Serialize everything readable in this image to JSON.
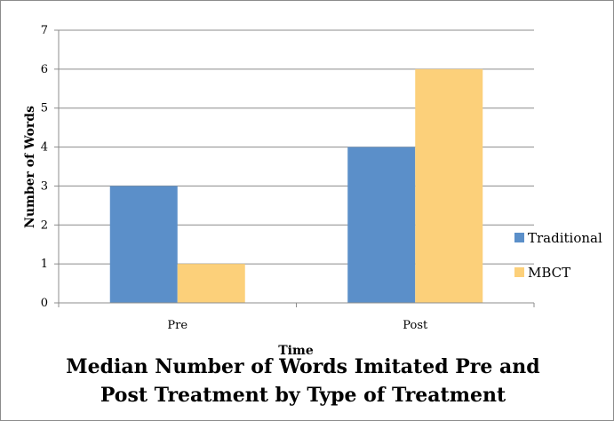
{
  "chart_data": {
    "type": "bar",
    "title": "Median Number of Words Imitated Pre and Post Treatment by Type of Treatment",
    "xlabel": "Time",
    "ylabel": "Number of Words",
    "categories": [
      "Pre",
      "Post"
    ],
    "ylim": [
      0,
      7
    ],
    "yticks": [
      0,
      1,
      2,
      3,
      4,
      5,
      6,
      7
    ],
    "grid": true,
    "legend_position": "right",
    "series": [
      {
        "name": "Traditional",
        "values": [
          3,
          4
        ],
        "color": "#5b8fc9"
      },
      {
        "name": "MBCT",
        "values": [
          1,
          6
        ],
        "color": "#fcd07a"
      }
    ]
  }
}
